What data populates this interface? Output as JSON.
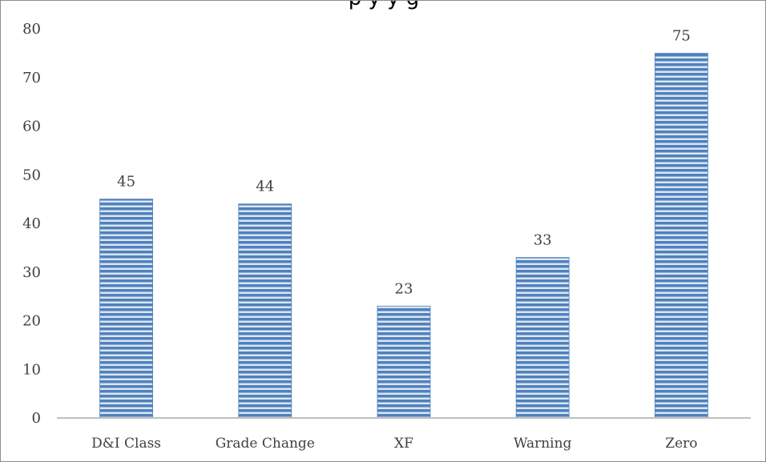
{
  "chart_data": {
    "type": "bar",
    "title": "p                              y                y      g",
    "categories": [
      "D&I Class",
      "Grade Change",
      "XF",
      "Warning",
      "Zero"
    ],
    "values": [
      45,
      44,
      23,
      33,
      75
    ],
    "ylim": [
      0,
      80
    ],
    "yticks": [
      0,
      10,
      20,
      30,
      40,
      50,
      60,
      70,
      80
    ],
    "grid": false,
    "legend": "none",
    "data_labels": true,
    "bar_color": "#4f81bd",
    "bar_stripe_color": "#dbe5f1",
    "axis_color": "#bfbfbf"
  }
}
